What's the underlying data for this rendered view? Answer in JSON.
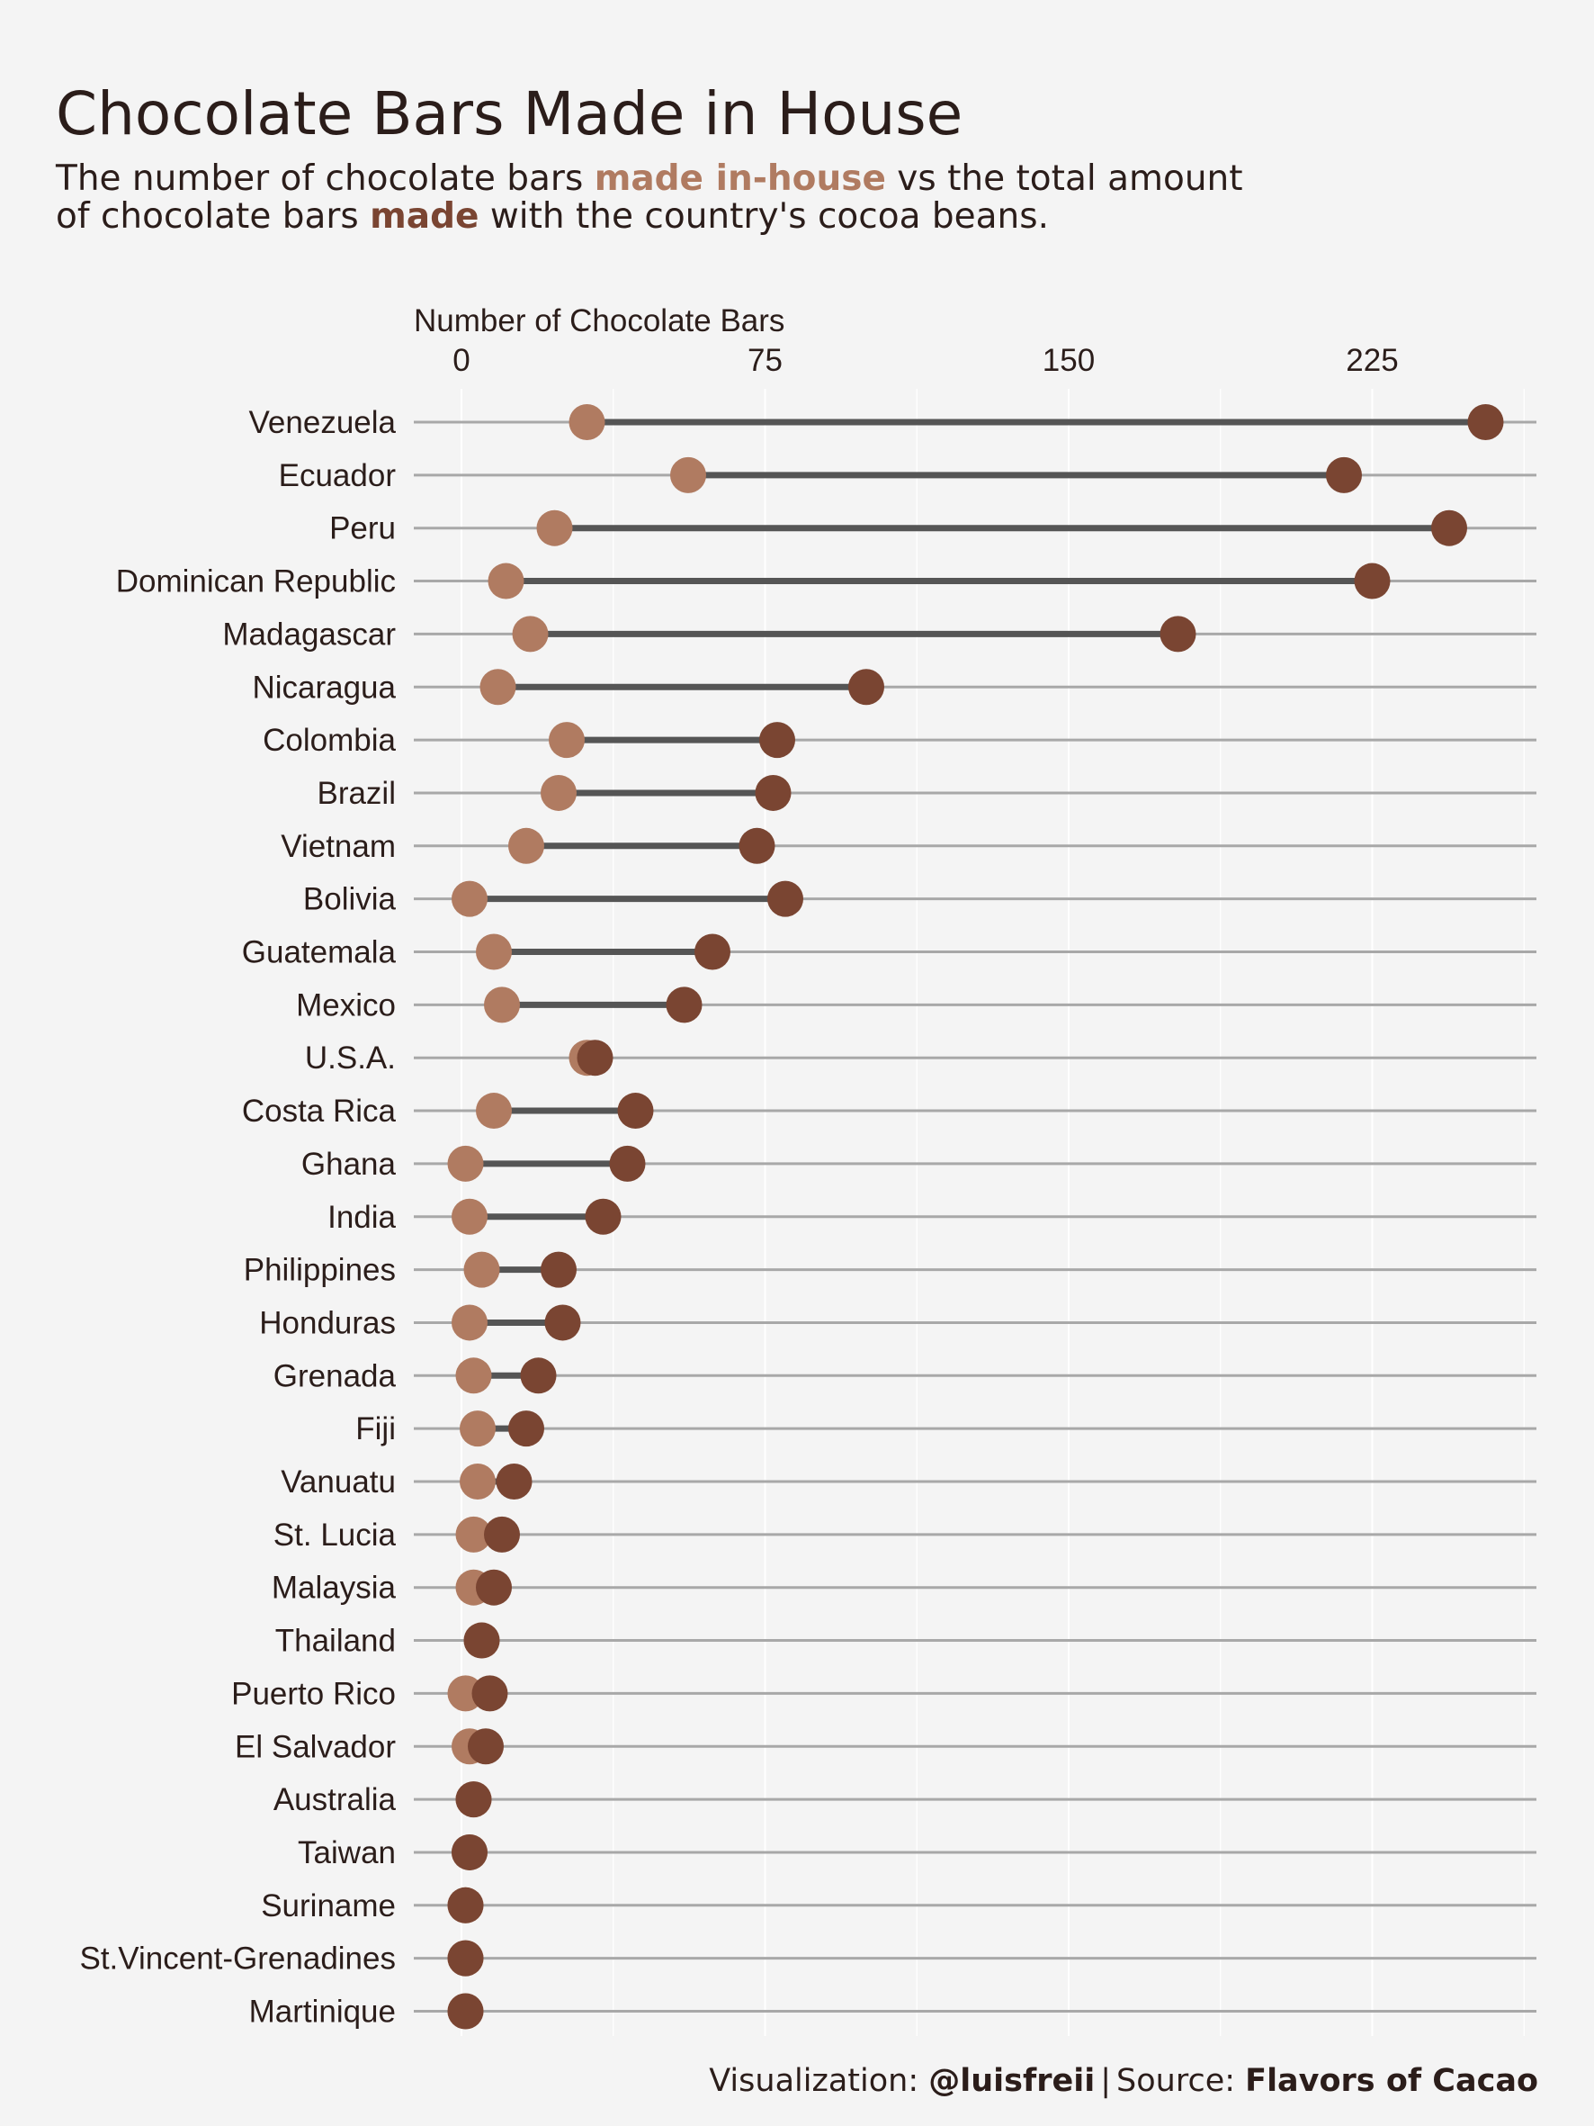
{
  "title": "Chocolate Bars Made in House",
  "subtitle": {
    "part1": "The number of chocolate bars ",
    "highlight_inhouse": "made in-house",
    "part2": " vs the total amount",
    "part3": "of chocolate bars ",
    "highlight_made": "made",
    "part4": " with the country's cocoa beans."
  },
  "caption": {
    "viz_label": "Visualization: ",
    "viz_author": "@luisfreii",
    "separator": "|",
    "source_label": "Source: ",
    "source_name": "Flavors of Cacao"
  },
  "colors": {
    "background": "#f4f4f4",
    "in_house": "#b07b61",
    "total": "#7a4532",
    "segment": "#555555",
    "row_line": "#a8a8a8",
    "grid": "#ffffff",
    "text": "#2b1d1a"
  },
  "chart_data": {
    "type": "dumbbell",
    "xlabel": "Number of Chocolate Bars",
    "ylabel": "",
    "xlim": [
      -12,
      265
    ],
    "x_ticks": [
      0,
      75,
      150,
      225
    ],
    "x_axis_position": "top",
    "grid": true,
    "legend": "none (encoded in subtitle colors)",
    "categories": [
      "Venezuela",
      "Ecuador",
      "Peru",
      "Dominican Republic",
      "Madagascar",
      "Nicaragua",
      "Colombia",
      "Brazil",
      "Vietnam",
      "Bolivia",
      "Guatemala",
      "Mexico",
      "U.S.A.",
      "Costa Rica",
      "Ghana",
      "India",
      "Philippines",
      "Honduras",
      "Grenada",
      "Fiji",
      "Vanuatu",
      "St. Lucia",
      "Malaysia",
      "Thailand",
      "Puerto Rico",
      "El Salvador",
      "Australia",
      "Taiwan",
      "Suriname",
      "St.Vincent-Grenadines",
      "Martinique"
    ],
    "series": [
      {
        "name": "made in-house",
        "values": [
          31,
          56,
          23,
          11,
          17,
          9,
          26,
          24,
          16,
          2,
          8,
          10,
          31,
          8,
          1,
          2,
          5,
          2,
          3,
          4,
          4,
          3,
          3,
          5,
          1,
          2,
          3,
          2,
          1,
          1,
          1
        ]
      },
      {
        "name": "made",
        "values": [
          253,
          218,
          244,
          225,
          177,
          100,
          78,
          77,
          73,
          80,
          62,
          55,
          33,
          43,
          41,
          35,
          24,
          25,
          19,
          16,
          13,
          10,
          8,
          5,
          7,
          6,
          3,
          2,
          1,
          1,
          1
        ]
      }
    ]
  }
}
